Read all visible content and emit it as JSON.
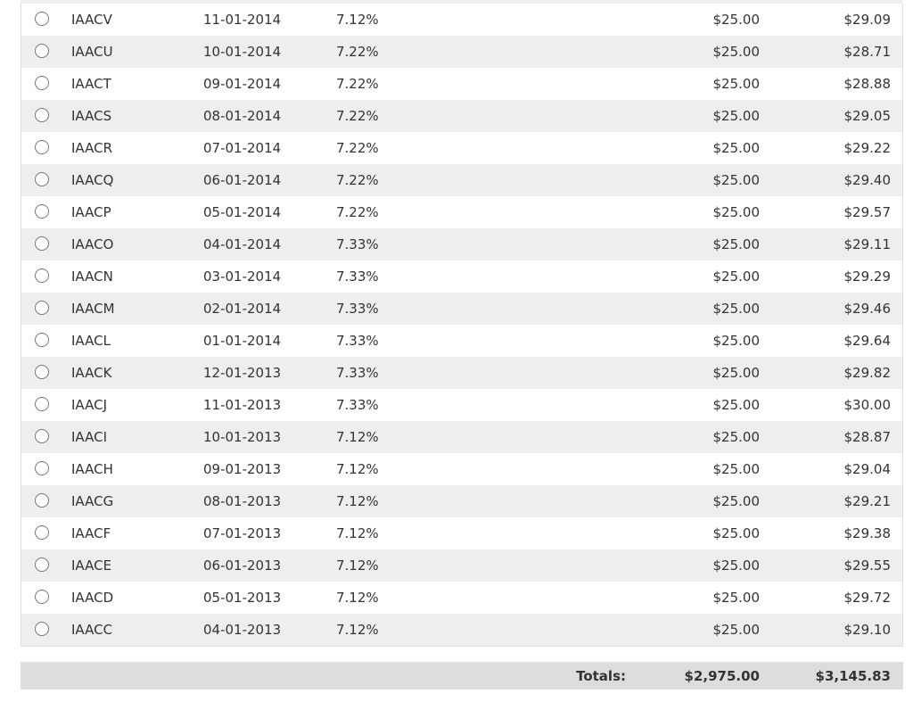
{
  "rows": [
    {
      "name": "IAACV",
      "date": "11-01-2014",
      "rate": "7.12%",
      "cost": "$25.00",
      "value": "$29.09"
    },
    {
      "name": "IAACU",
      "date": "10-01-2014",
      "rate": "7.22%",
      "cost": "$25.00",
      "value": "$28.71"
    },
    {
      "name": "IAACT",
      "date": "09-01-2014",
      "rate": "7.22%",
      "cost": "$25.00",
      "value": "$28.88"
    },
    {
      "name": "IAACS",
      "date": "08-01-2014",
      "rate": "7.22%",
      "cost": "$25.00",
      "value": "$29.05"
    },
    {
      "name": "IAACR",
      "date": "07-01-2014",
      "rate": "7.22%",
      "cost": "$25.00",
      "value": "$29.22"
    },
    {
      "name": "IAACQ",
      "date": "06-01-2014",
      "rate": "7.22%",
      "cost": "$25.00",
      "value": "$29.40"
    },
    {
      "name": "IAACP",
      "date": "05-01-2014",
      "rate": "7.22%",
      "cost": "$25.00",
      "value": "$29.57"
    },
    {
      "name": "IAACO",
      "date": "04-01-2014",
      "rate": "7.33%",
      "cost": "$25.00",
      "value": "$29.11"
    },
    {
      "name": "IAACN",
      "date": "03-01-2014",
      "rate": "7.33%",
      "cost": "$25.00",
      "value": "$29.29"
    },
    {
      "name": "IAACM",
      "date": "02-01-2014",
      "rate": "7.33%",
      "cost": "$25.00",
      "value": "$29.46"
    },
    {
      "name": "IAACL",
      "date": "01-01-2014",
      "rate": "7.33%",
      "cost": "$25.00",
      "value": "$29.64"
    },
    {
      "name": "IAACK",
      "date": "12-01-2013",
      "rate": "7.33%",
      "cost": "$25.00",
      "value": "$29.82"
    },
    {
      "name": "IAACJ",
      "date": "11-01-2013",
      "rate": "7.33%",
      "cost": "$25.00",
      "value": "$30.00"
    },
    {
      "name": "IAACI",
      "date": "10-01-2013",
      "rate": "7.12%",
      "cost": "$25.00",
      "value": "$28.87"
    },
    {
      "name": "IAACH",
      "date": "09-01-2013",
      "rate": "7.12%",
      "cost": "$25.00",
      "value": "$29.04"
    },
    {
      "name": "IAACG",
      "date": "08-01-2013",
      "rate": "7.12%",
      "cost": "$25.00",
      "value": "$29.21"
    },
    {
      "name": "IAACF",
      "date": "07-01-2013",
      "rate": "7.12%",
      "cost": "$25.00",
      "value": "$29.38"
    },
    {
      "name": "IAACE",
      "date": "06-01-2013",
      "rate": "7.12%",
      "cost": "$25.00",
      "value": "$29.55"
    },
    {
      "name": "IAACD",
      "date": "05-01-2013",
      "rate": "7.12%",
      "cost": "$25.00",
      "value": "$29.72"
    },
    {
      "name": "IAACC",
      "date": "04-01-2013",
      "rate": "7.12%",
      "cost": "$25.00",
      "value": "$29.10"
    }
  ],
  "totals": {
    "label": "Totals:",
    "cost": "$2,975.00",
    "value": "$3,145.83"
  }
}
